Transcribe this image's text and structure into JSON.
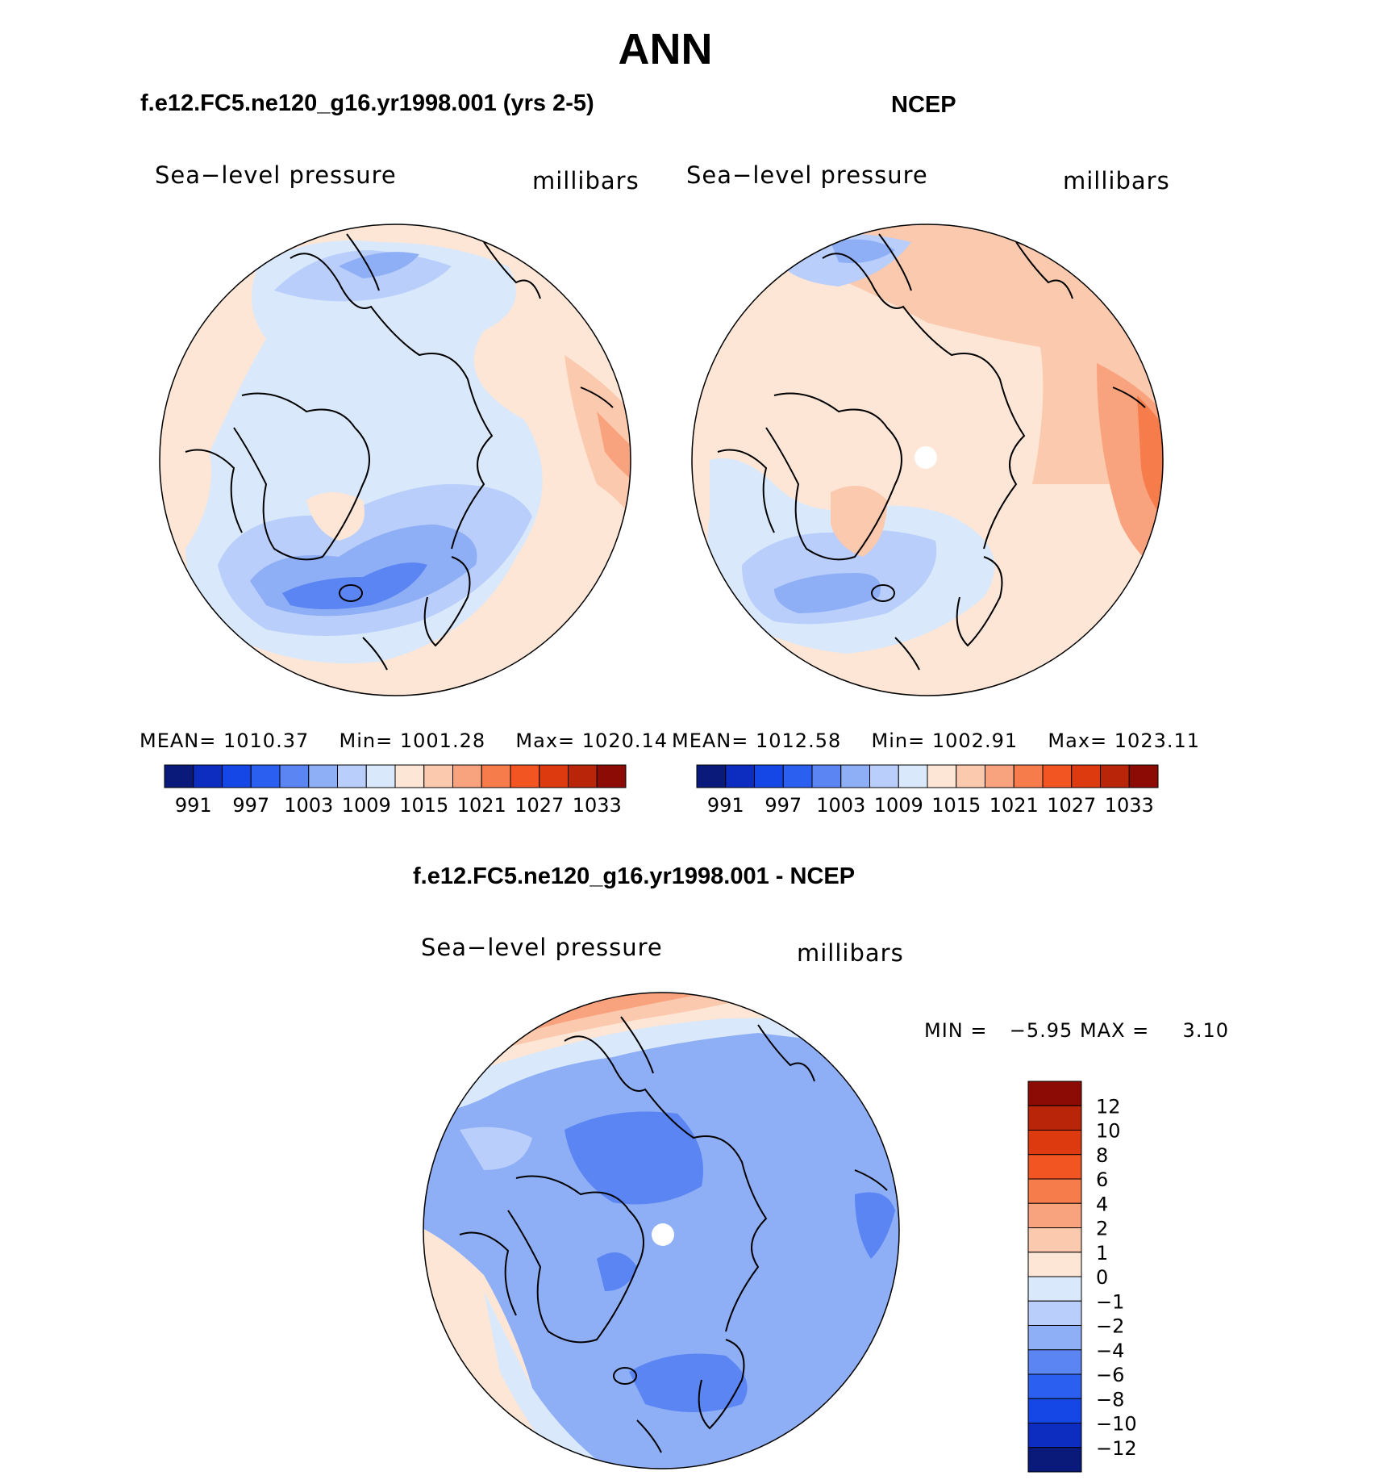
{
  "title": "ANN",
  "colors": {
    "blues": [
      "#0a1a7a",
      "#0c2dbf",
      "#1546e6",
      "#2a5ff0",
      "#5a85f2",
      "#8eaef6",
      "#b9cefa",
      "#d9e8fb"
    ],
    "reds": [
      "#fde6d6",
      "#fbc9ad",
      "#f9a27e",
      "#f77c4c",
      "#f25522",
      "#de3a10",
      "#b82508",
      "#8c0b05"
    ],
    "coast": "#000000",
    "pole_hole": "#ffffff"
  },
  "panels": [
    {
      "id": "model",
      "heading": "f.e12.FC5.ne120_g16.yr1998.001 (yrs 2-5)",
      "variable": "Sea−level pressure",
      "units": "millibars",
      "stats": {
        "mean_label": "MEAN=",
        "mean": "1010.37",
        "min_label": "Min=",
        "min": "1001.28",
        "max_label": "Max=",
        "max": "1020.14"
      },
      "colorbar_labels": [
        "991",
        "997",
        "1003",
        "1009",
        "1015",
        "1021",
        "1027",
        "1033"
      ]
    },
    {
      "id": "obs",
      "heading": "NCEP",
      "variable": "Sea−level pressure",
      "units": "millibars",
      "stats": {
        "mean_label": "MEAN=",
        "mean": "1012.58",
        "min_label": "Min=",
        "min": "1002.91",
        "max_label": "Max=",
        "max": "1023.11"
      },
      "colorbar_labels": [
        "991",
        "997",
        "1003",
        "1009",
        "1015",
        "1021",
        "1027",
        "1033"
      ]
    },
    {
      "id": "diff",
      "heading": "f.e12.FC5.ne120_g16.yr1998.001 - NCEP",
      "variable": "Sea−level pressure",
      "units": "millibars",
      "stats": {
        "min_label": "MIN =",
        "min": "−5.95",
        "max_label": "MAX =",
        "max": "3.10"
      },
      "colorbar_labels": [
        "12",
        "10",
        "8",
        "6",
        "4",
        "2",
        "1",
        "0",
        "−1",
        "−2",
        "−4",
        "−6",
        "−8",
        "−10",
        "−12"
      ]
    }
  ]
}
